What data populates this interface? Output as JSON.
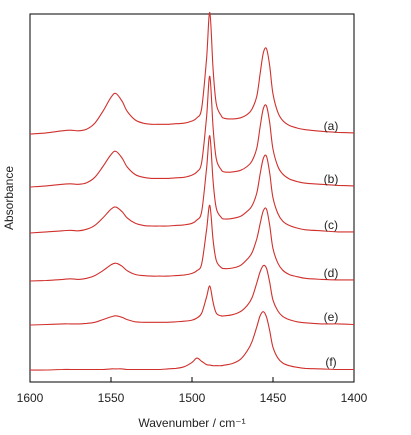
{
  "chart_data": {
    "type": "line",
    "title": "",
    "xlabel": "Wavenumber / cm⁻¹",
    "ylabel": "Absorbance",
    "xlim": [
      1600,
      1400
    ],
    "x_reversed": true,
    "x_ticks": [
      1600,
      1550,
      1500,
      1450,
      1400
    ],
    "y_ticks_shown": false,
    "grid": false,
    "legend": "none",
    "line_color": "#d0312d",
    "frame_color": "#000000",
    "x": [
      1600,
      1590,
      1580,
      1575,
      1570,
      1565,
      1560,
      1555,
      1550,
      1547,
      1543,
      1540,
      1535,
      1530,
      1525,
      1520,
      1515,
      1510,
      1505,
      1500,
      1497,
      1494,
      1491,
      1489,
      1487,
      1485,
      1482,
      1480,
      1475,
      1470,
      1466,
      1463,
      1460,
      1458,
      1456,
      1454,
      1452,
      1450,
      1447,
      1444,
      1440,
      1435,
      1430,
      1420,
      1410,
      1400
    ],
    "series": [
      {
        "name": "(a)",
        "values": [
          0.0,
          0.02,
          0.06,
          0.07,
          0.06,
          0.09,
          0.2,
          0.42,
          0.68,
          0.75,
          0.6,
          0.42,
          0.26,
          0.2,
          0.18,
          0.18,
          0.18,
          0.19,
          0.2,
          0.24,
          0.3,
          0.48,
          1.4,
          2.25,
          1.2,
          0.56,
          0.34,
          0.29,
          0.28,
          0.3,
          0.36,
          0.46,
          0.7,
          1.1,
          1.5,
          1.58,
          1.25,
          0.74,
          0.4,
          0.25,
          0.16,
          0.11,
          0.08,
          0.05,
          0.03,
          0.02
        ]
      },
      {
        "name": "(b)",
        "values": [
          0.0,
          0.02,
          0.05,
          0.06,
          0.05,
          0.08,
          0.18,
          0.38,
          0.6,
          0.66,
          0.53,
          0.37,
          0.23,
          0.18,
          0.16,
          0.16,
          0.16,
          0.17,
          0.18,
          0.22,
          0.28,
          0.46,
          1.3,
          2.05,
          1.1,
          0.52,
          0.32,
          0.28,
          0.28,
          0.31,
          0.38,
          0.48,
          0.72,
          1.1,
          1.45,
          1.5,
          1.18,
          0.7,
          0.38,
          0.24,
          0.15,
          0.1,
          0.07,
          0.05,
          0.03,
          0.02
        ]
      },
      {
        "name": "(c)",
        "values": [
          0.0,
          0.02,
          0.04,
          0.05,
          0.04,
          0.07,
          0.14,
          0.28,
          0.44,
          0.48,
          0.39,
          0.28,
          0.18,
          0.14,
          0.13,
          0.13,
          0.13,
          0.14,
          0.15,
          0.18,
          0.24,
          0.4,
          1.2,
          1.8,
          0.96,
          0.46,
          0.29,
          0.26,
          0.27,
          0.31,
          0.4,
          0.5,
          0.74,
          1.08,
          1.38,
          1.42,
          1.1,
          0.65,
          0.36,
          0.22,
          0.14,
          0.09,
          0.06,
          0.04,
          0.02,
          0.02
        ]
      },
      {
        "name": "(d)",
        "values": [
          0.0,
          0.01,
          0.03,
          0.04,
          0.03,
          0.05,
          0.1,
          0.19,
          0.3,
          0.33,
          0.27,
          0.19,
          0.12,
          0.1,
          0.09,
          0.09,
          0.09,
          0.1,
          0.11,
          0.14,
          0.19,
          0.32,
          0.95,
          1.4,
          0.76,
          0.38,
          0.25,
          0.23,
          0.24,
          0.29,
          0.4,
          0.52,
          0.78,
          1.05,
          1.3,
          1.33,
          1.02,
          0.6,
          0.33,
          0.2,
          0.12,
          0.08,
          0.05,
          0.03,
          0.02,
          0.02
        ]
      },
      {
        "name": "(e)",
        "values": [
          0.0,
          0.01,
          0.02,
          0.02,
          0.02,
          0.03,
          0.05,
          0.1,
          0.15,
          0.17,
          0.14,
          0.1,
          0.06,
          0.05,
          0.05,
          0.05,
          0.05,
          0.06,
          0.07,
          0.09,
          0.13,
          0.22,
          0.52,
          0.72,
          0.42,
          0.22,
          0.17,
          0.17,
          0.19,
          0.25,
          0.36,
          0.5,
          0.78,
          0.98,
          1.1,
          1.05,
          0.78,
          0.46,
          0.26,
          0.16,
          0.1,
          0.06,
          0.04,
          0.02,
          0.02,
          0.01
        ]
      },
      {
        "name": "(f)",
        "values": [
          0.0,
          0.0,
          0.01,
          0.01,
          0.01,
          0.01,
          0.01,
          0.01,
          0.02,
          0.02,
          0.02,
          0.01,
          0.01,
          0.01,
          0.01,
          0.01,
          0.02,
          0.03,
          0.06,
          0.14,
          0.22,
          0.16,
          0.1,
          0.09,
          0.08,
          0.08,
          0.08,
          0.09,
          0.12,
          0.2,
          0.35,
          0.52,
          0.8,
          1.0,
          1.08,
          0.98,
          0.72,
          0.42,
          0.22,
          0.13,
          0.08,
          0.05,
          0.03,
          0.02,
          0.01,
          0.01
        ]
      }
    ]
  }
}
